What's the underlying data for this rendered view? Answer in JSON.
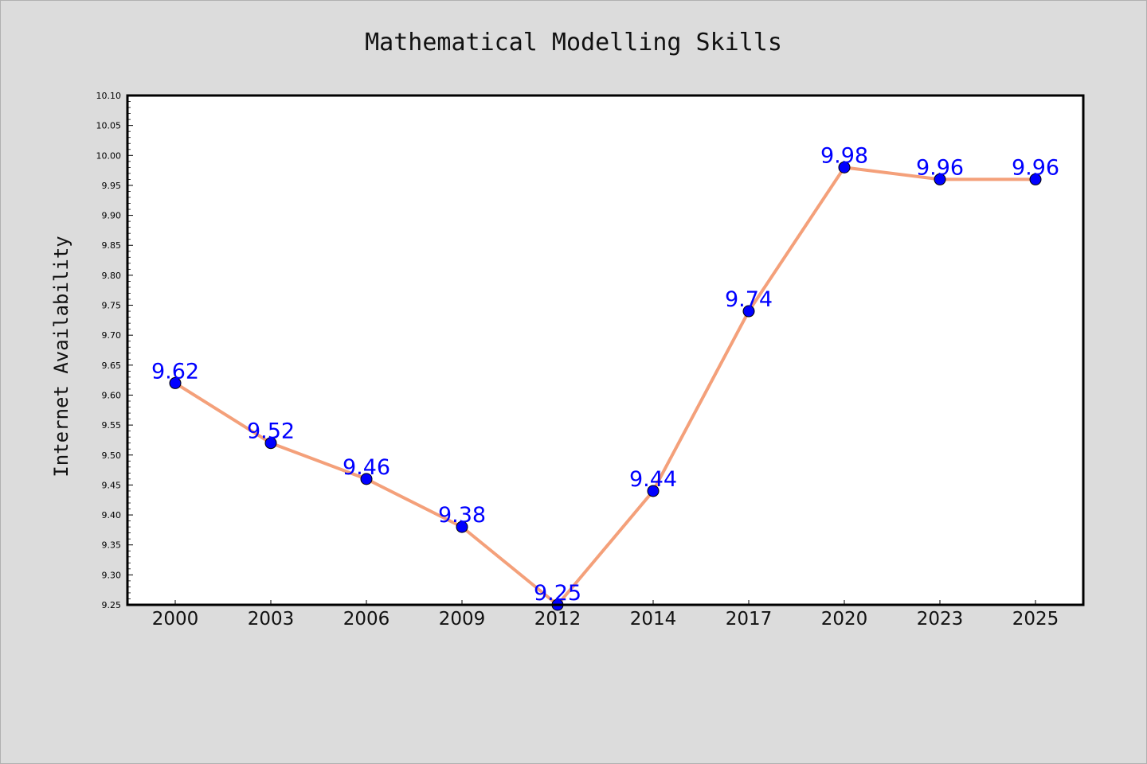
{
  "chart_data": {
    "type": "line",
    "title": "Mathematical Modelling Skills",
    "xlabel": "",
    "ylabel": "Internet Availability",
    "categories": [
      "2000",
      "2003",
      "2006",
      "2009",
      "2012",
      "2014",
      "2017",
      "2020",
      "2023",
      "2025"
    ],
    "values": [
      9.62,
      9.52,
      9.46,
      9.38,
      9.25,
      9.44,
      9.74,
      9.98,
      9.96,
      9.96
    ],
    "data_labels": [
      "9.62",
      "9.52",
      "9.46",
      "9.38",
      "9.25",
      "9.44",
      "9.74",
      "9.98",
      "9.96",
      "9.96"
    ],
    "ylim": [
      9.25,
      10.1
    ],
    "yticks": [
      "9.25",
      "9.30",
      "9.35",
      "9.40",
      "9.45",
      "9.50",
      "9.55",
      "9.60",
      "9.65",
      "9.70",
      "9.75",
      "9.80",
      "9.85",
      "9.90",
      "9.95",
      "10.00",
      "10.05",
      "10.10"
    ],
    "grid": false,
    "legend": "none",
    "colors": {
      "line": "#f4a07a",
      "marker": "#0000ff",
      "label": "#0000ff",
      "background": "#dcdcdc",
      "plot_area": "#ffffff"
    }
  }
}
